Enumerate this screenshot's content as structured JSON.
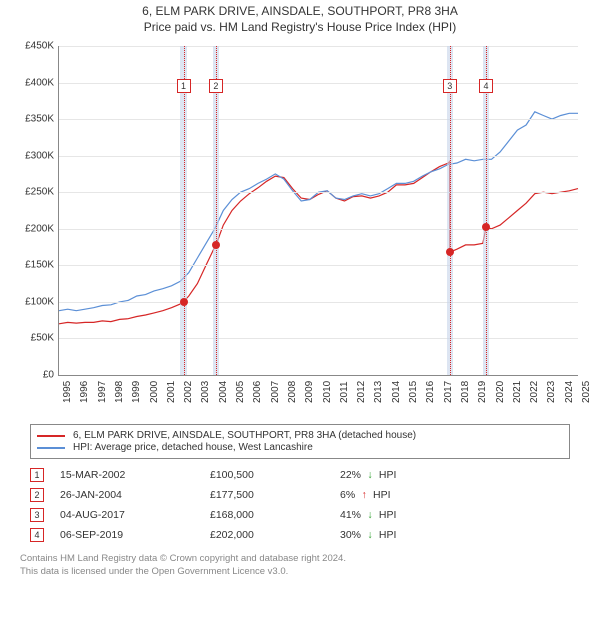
{
  "titles": {
    "main": "6, ELM PARK DRIVE, AINSDALE, SOUTHPORT, PR8 3HA",
    "sub": "Price paid vs. HM Land Registry's House Price Index (HPI)"
  },
  "chart": {
    "type": "line",
    "background_color": "#ffffff",
    "grid_color": "#e6e6e6",
    "axis_color": "#888888",
    "text_color": "#333333",
    "xlim": [
      1995,
      2025
    ],
    "ylim": [
      0,
      450000
    ],
    "ytick_step": 50000,
    "ytick_prefix": "£",
    "ytick_suffix": "K",
    "ytick_divisor": 1000,
    "xtick_step": 1,
    "series": [
      {
        "id": "property",
        "label": "6, ELM PARK DRIVE, AINSDALE, SOUTHPORT, PR8 3HA (detached house)",
        "color": "#d62626",
        "width": 1.4,
        "points": [
          [
            1995.0,
            70000
          ],
          [
            1995.5,
            72000
          ],
          [
            1996.0,
            71000
          ],
          [
            1996.5,
            72000
          ],
          [
            1997.0,
            72000
          ],
          [
            1997.5,
            74000
          ],
          [
            1998.0,
            73000
          ],
          [
            1998.5,
            76000
          ],
          [
            1999.0,
            77000
          ],
          [
            1999.5,
            80000
          ],
          [
            2000.0,
            82000
          ],
          [
            2000.5,
            85000
          ],
          [
            2001.0,
            88000
          ],
          [
            2001.5,
            92000
          ],
          [
            2002.0,
            97000
          ],
          [
            2002.2,
            100500
          ],
          [
            2002.5,
            108000
          ],
          [
            2003.0,
            125000
          ],
          [
            2003.5,
            150000
          ],
          [
            2004.0,
            175000
          ],
          [
            2004.07,
            177500
          ],
          [
            2004.5,
            205000
          ],
          [
            2005.0,
            225000
          ],
          [
            2005.5,
            238000
          ],
          [
            2006.0,
            248000
          ],
          [
            2006.5,
            256000
          ],
          [
            2007.0,
            265000
          ],
          [
            2007.5,
            272000
          ],
          [
            2008.0,
            270000
          ],
          [
            2008.5,
            255000
          ],
          [
            2009.0,
            242000
          ],
          [
            2009.5,
            240000
          ],
          [
            2010.0,
            247000
          ],
          [
            2010.5,
            252000
          ],
          [
            2011.0,
            242000
          ],
          [
            2011.5,
            238000
          ],
          [
            2012.0,
            244000
          ],
          [
            2012.5,
            245000
          ],
          [
            2013.0,
            242000
          ],
          [
            2013.5,
            245000
          ],
          [
            2014.0,
            250000
          ],
          [
            2014.5,
            260000
          ],
          [
            2015.0,
            260000
          ],
          [
            2015.5,
            262000
          ],
          [
            2016.0,
            270000
          ],
          [
            2016.5,
            278000
          ],
          [
            2017.0,
            285000
          ],
          [
            2017.5,
            290000
          ],
          [
            2017.58,
            292000
          ],
          [
            2017.59,
            168000
          ],
          [
            2018.0,
            172000
          ],
          [
            2018.5,
            178000
          ],
          [
            2019.0,
            178000
          ],
          [
            2019.5,
            180000
          ],
          [
            2019.67,
            200000
          ],
          [
            2019.68,
            202000
          ],
          [
            2020.0,
            200000
          ],
          [
            2020.5,
            205000
          ],
          [
            2021.0,
            215000
          ],
          [
            2021.5,
            225000
          ],
          [
            2022.0,
            235000
          ],
          [
            2022.5,
            248000
          ],
          [
            2023.0,
            250000
          ],
          [
            2023.5,
            248000
          ],
          [
            2024.0,
            250000
          ],
          [
            2024.5,
            252000
          ],
          [
            2025.0,
            255000
          ]
        ]
      },
      {
        "id": "hpi",
        "label": "HPI: Average price, detached house, West Lancashire",
        "color": "#5b8fd6",
        "width": 1.2,
        "points": [
          [
            1995.0,
            88000
          ],
          [
            1995.5,
            90000
          ],
          [
            1996.0,
            88000
          ],
          [
            1996.5,
            90000
          ],
          [
            1997.0,
            92000
          ],
          [
            1997.5,
            95000
          ],
          [
            1998.0,
            96000
          ],
          [
            1998.5,
            100000
          ],
          [
            1999.0,
            102000
          ],
          [
            1999.5,
            108000
          ],
          [
            2000.0,
            110000
          ],
          [
            2000.5,
            115000
          ],
          [
            2001.0,
            118000
          ],
          [
            2001.5,
            122000
          ],
          [
            2002.0,
            128000
          ],
          [
            2002.5,
            140000
          ],
          [
            2003.0,
            160000
          ],
          [
            2003.5,
            180000
          ],
          [
            2004.0,
            200000
          ],
          [
            2004.5,
            225000
          ],
          [
            2005.0,
            240000
          ],
          [
            2005.5,
            250000
          ],
          [
            2006.0,
            255000
          ],
          [
            2006.5,
            262000
          ],
          [
            2007.0,
            268000
          ],
          [
            2007.5,
            275000
          ],
          [
            2008.0,
            268000
          ],
          [
            2008.5,
            252000
          ],
          [
            2009.0,
            238000
          ],
          [
            2009.5,
            240000
          ],
          [
            2010.0,
            250000
          ],
          [
            2010.5,
            252000
          ],
          [
            2011.0,
            242000
          ],
          [
            2011.5,
            240000
          ],
          [
            2012.0,
            245000
          ],
          [
            2012.5,
            248000
          ],
          [
            2013.0,
            245000
          ],
          [
            2013.5,
            248000
          ],
          [
            2014.0,
            255000
          ],
          [
            2014.5,
            262000
          ],
          [
            2015.0,
            262000
          ],
          [
            2015.5,
            265000
          ],
          [
            2016.0,
            272000
          ],
          [
            2016.5,
            278000
          ],
          [
            2017.0,
            282000
          ],
          [
            2017.5,
            288000
          ],
          [
            2018.0,
            290000
          ],
          [
            2018.5,
            295000
          ],
          [
            2019.0,
            293000
          ],
          [
            2019.5,
            295000
          ],
          [
            2020.0,
            295000
          ],
          [
            2020.5,
            305000
          ],
          [
            2021.0,
            320000
          ],
          [
            2021.5,
            335000
          ],
          [
            2022.0,
            342000
          ],
          [
            2022.5,
            360000
          ],
          [
            2023.0,
            355000
          ],
          [
            2023.5,
            350000
          ],
          [
            2024.0,
            355000
          ],
          [
            2024.5,
            358000
          ],
          [
            2025.0,
            358000
          ]
        ]
      }
    ],
    "sale_markers": [
      {
        "n": "1",
        "x": 2002.2,
        "y": 100500,
        "color": "#d62626"
      },
      {
        "n": "2",
        "x": 2004.07,
        "y": 177500,
        "color": "#d62626"
      },
      {
        "n": "3",
        "x": 2017.59,
        "y": 168000,
        "color": "#d62626"
      },
      {
        "n": "4",
        "x": 2019.68,
        "y": 202000,
        "color": "#d62626"
      }
    ],
    "marker_band": {
      "fill": "#c6d4ea",
      "opacity": 0.6,
      "border": "#5b8fd6",
      "halfwidth": 0.18
    },
    "marker_line": {
      "color": "#d62626",
      "style": "dotted",
      "width": 1
    },
    "marker_numbox_top_y": 405000
  },
  "legend": {
    "items": [
      {
        "color": "#d62626",
        "label": "6, ELM PARK DRIVE, AINSDALE, SOUTHPORT, PR8 3HA (detached house)"
      },
      {
        "color": "#5b8fd6",
        "label": "HPI: Average price, detached house, West Lancashire"
      }
    ]
  },
  "sales_table": {
    "numbox_color": "#d62626",
    "hpi_suffix": "HPI",
    "arrow_down": "↓",
    "arrow_up": "↑",
    "arrow_down_color": "#2e9e2e",
    "arrow_up_color": "#d62626",
    "rows": [
      {
        "n": "1",
        "date": "15-MAR-2002",
        "price": "£100,500",
        "delta_pct": "22%",
        "direction": "down"
      },
      {
        "n": "2",
        "date": "26-JAN-2004",
        "price": "£177,500",
        "delta_pct": "6%",
        "direction": "up"
      },
      {
        "n": "3",
        "date": "04-AUG-2017",
        "price": "£168,000",
        "delta_pct": "41%",
        "direction": "down"
      },
      {
        "n": "4",
        "date": "06-SEP-2019",
        "price": "£202,000",
        "delta_pct": "30%",
        "direction": "down"
      }
    ]
  },
  "footnote": {
    "line1": "Contains HM Land Registry data © Crown copyright and database right 2024.",
    "line2": "This data is licensed under the Open Government Licence v3.0."
  }
}
